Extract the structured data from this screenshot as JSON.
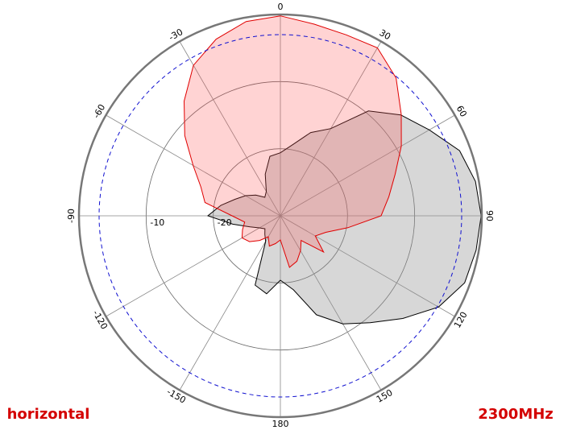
{
  "chart_data": {
    "type": "polar",
    "theta": [
      -180,
      -170,
      -160,
      -150,
      -140,
      -130,
      -120,
      -110,
      -100,
      -90,
      -80,
      -70,
      -60,
      -50,
      -40,
      -30,
      -20,
      -10,
      0,
      10,
      20,
      30,
      40,
      50,
      60,
      70,
      80,
      90,
      100,
      110,
      120,
      130,
      140,
      150,
      160,
      170
    ],
    "series": [
      {
        "color": "#000000",
        "fill": "rgba(150,150,150,0.38)",
        "values": [
          -20.4,
          -18.2,
          -19,
          -25.6,
          -26.4,
          -27,
          -26.4,
          -25.2,
          -22.8,
          -19.2,
          -21,
          -22.8,
          -24,
          -25.2,
          -26.4,
          -25.8,
          -23.4,
          -21,
          -20.6,
          -19.2,
          -16.8,
          -15,
          -9.6,
          -6.6,
          -4.4,
          -1.6,
          -0.5,
          -0.1,
          -0.4,
          -0.8,
          -2.8,
          -6.2,
          -9.2,
          -11.4,
          -14.3,
          -18.8
        ]
      },
      {
        "color": "#e00000",
        "fill": "rgba(255,80,80,0.25)",
        "values": [
          -26.4,
          -25.8,
          -25.2,
          -26.4,
          -25.2,
          -24,
          -23.4,
          -24,
          -24.6,
          -22.8,
          -18.6,
          -17.4,
          -15,
          -11.4,
          -7.7,
          -4.1,
          -2,
          -0.6,
          -0.2,
          -1,
          -1.3,
          -1.1,
          -3.2,
          -6.5,
          -9.2,
          -11.8,
          -13.6,
          -15,
          -19.8,
          -22.8,
          -24,
          -21.6,
          -25.2,
          -24,
          -22.8,
          -22.2
        ]
      }
    ],
    "rlim": [
      -30,
      0
    ],
    "rticks": [
      -20,
      -10
    ],
    "ref_circle": -3,
    "thetaticks": [
      0,
      30,
      60,
      90,
      120,
      150,
      180,
      -150,
      -120,
      -90,
      -60,
      -30
    ],
    "left_label": "horizontal",
    "right_label": "2300MHz"
  }
}
